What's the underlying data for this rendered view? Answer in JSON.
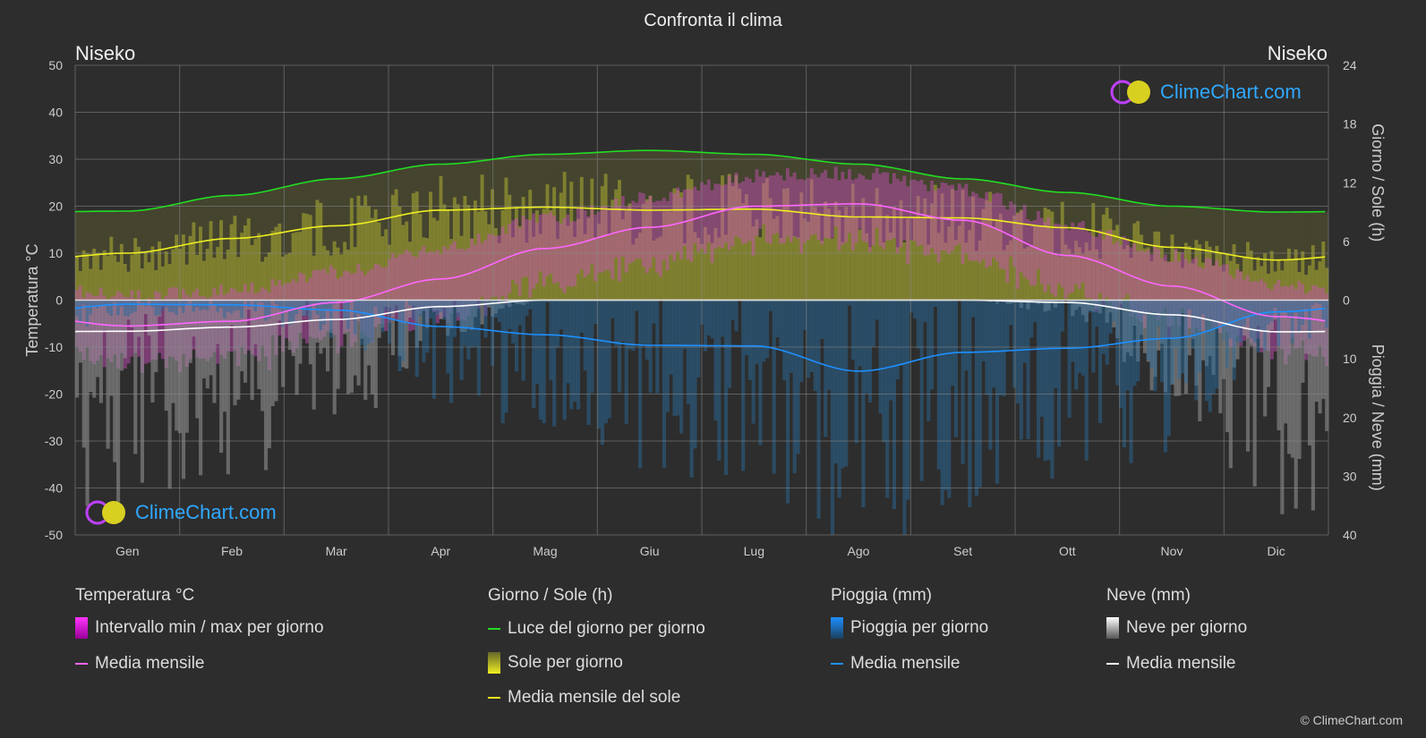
{
  "title": "Confronta il clima",
  "location_left": "Niseko",
  "location_right": "Niseko",
  "logo_text": "ClimeChart.com",
  "copyright": "© ClimeChart.com",
  "colors": {
    "temp": "#ff66ff",
    "daylight": "#22dd22",
    "sun": "#eeee22",
    "rain": "#1e90ff",
    "snow": "#ffffff",
    "bg": "#2d2d2d"
  },
  "chart_data": {
    "type": "line",
    "title": "Confronta il clima",
    "categories": [
      "Gen",
      "Feb",
      "Mar",
      "Apr",
      "Mag",
      "Giu",
      "Lug",
      "Ago",
      "Set",
      "Ott",
      "Nov",
      "Dic"
    ],
    "left_axis": {
      "label": "Temperatura °C",
      "range": [
        -50,
        50
      ],
      "ticks": [
        "50",
        "40",
        "30",
        "20",
        "10",
        "0",
        "-10",
        "-20",
        "-30",
        "-40",
        "-50"
      ]
    },
    "right_axis_top": {
      "label": "Giorno / Sole (h)",
      "range": [
        0,
        24
      ],
      "ticks": [
        "24",
        "18",
        "12",
        "6",
        "0"
      ]
    },
    "right_axis_bottom": {
      "label": "Pioggia / Neve (mm)",
      "range": [
        0,
        40
      ],
      "ticks": [
        "0",
        "10",
        "20",
        "30",
        "40"
      ]
    },
    "grid": true,
    "series": [
      {
        "name": "Media mensile temperatura",
        "unit": "°C",
        "values": [
          -5.5,
          -4.5,
          -0.5,
          4.5,
          11,
          15.5,
          20,
          20.5,
          17,
          9.5,
          3,
          -3.5
        ]
      },
      {
        "name": "Luce del giorno per giorno",
        "unit": "h",
        "values": [
          9.1,
          10.7,
          12.4,
          13.9,
          14.9,
          15.3,
          14.9,
          13.9,
          12.4,
          11.0,
          9.6,
          9.0
        ]
      },
      {
        "name": "Media mensile del sole",
        "unit": "h",
        "values": [
          4.8,
          6.3,
          7.6,
          9.2,
          9.5,
          9.2,
          9.3,
          8.5,
          8.4,
          7.4,
          5.4,
          4.1
        ]
      },
      {
        "name": "Media mensile pioggia",
        "unit": "mm",
        "values": [
          0.7,
          0.8,
          1.7,
          4.5,
          5.9,
          7.7,
          7.8,
          12.1,
          8.9,
          8.2,
          6.5,
          2.0
        ]
      },
      {
        "name": "Media mensile neve",
        "unit": "mm",
        "values": [
          5.3,
          4.6,
          3.3,
          1.1,
          0,
          0,
          0,
          0,
          0,
          0.4,
          2.5,
          5.4
        ]
      }
    ]
  },
  "legend": {
    "temp": {
      "heading": "Temperatura °C",
      "items": [
        "Intervallo min / max per giorno",
        "Media mensile"
      ]
    },
    "sun": {
      "heading": "Giorno / Sole (h)",
      "items": [
        "Luce del giorno per giorno",
        "Sole per giorno",
        "Media mensile del sole"
      ]
    },
    "rain": {
      "heading": "Pioggia (mm)",
      "items": [
        "Pioggia per giorno",
        "Media mensile"
      ]
    },
    "snow": {
      "heading": "Neve (mm)",
      "items": [
        "Neve per giorno",
        "Media mensile"
      ]
    }
  }
}
